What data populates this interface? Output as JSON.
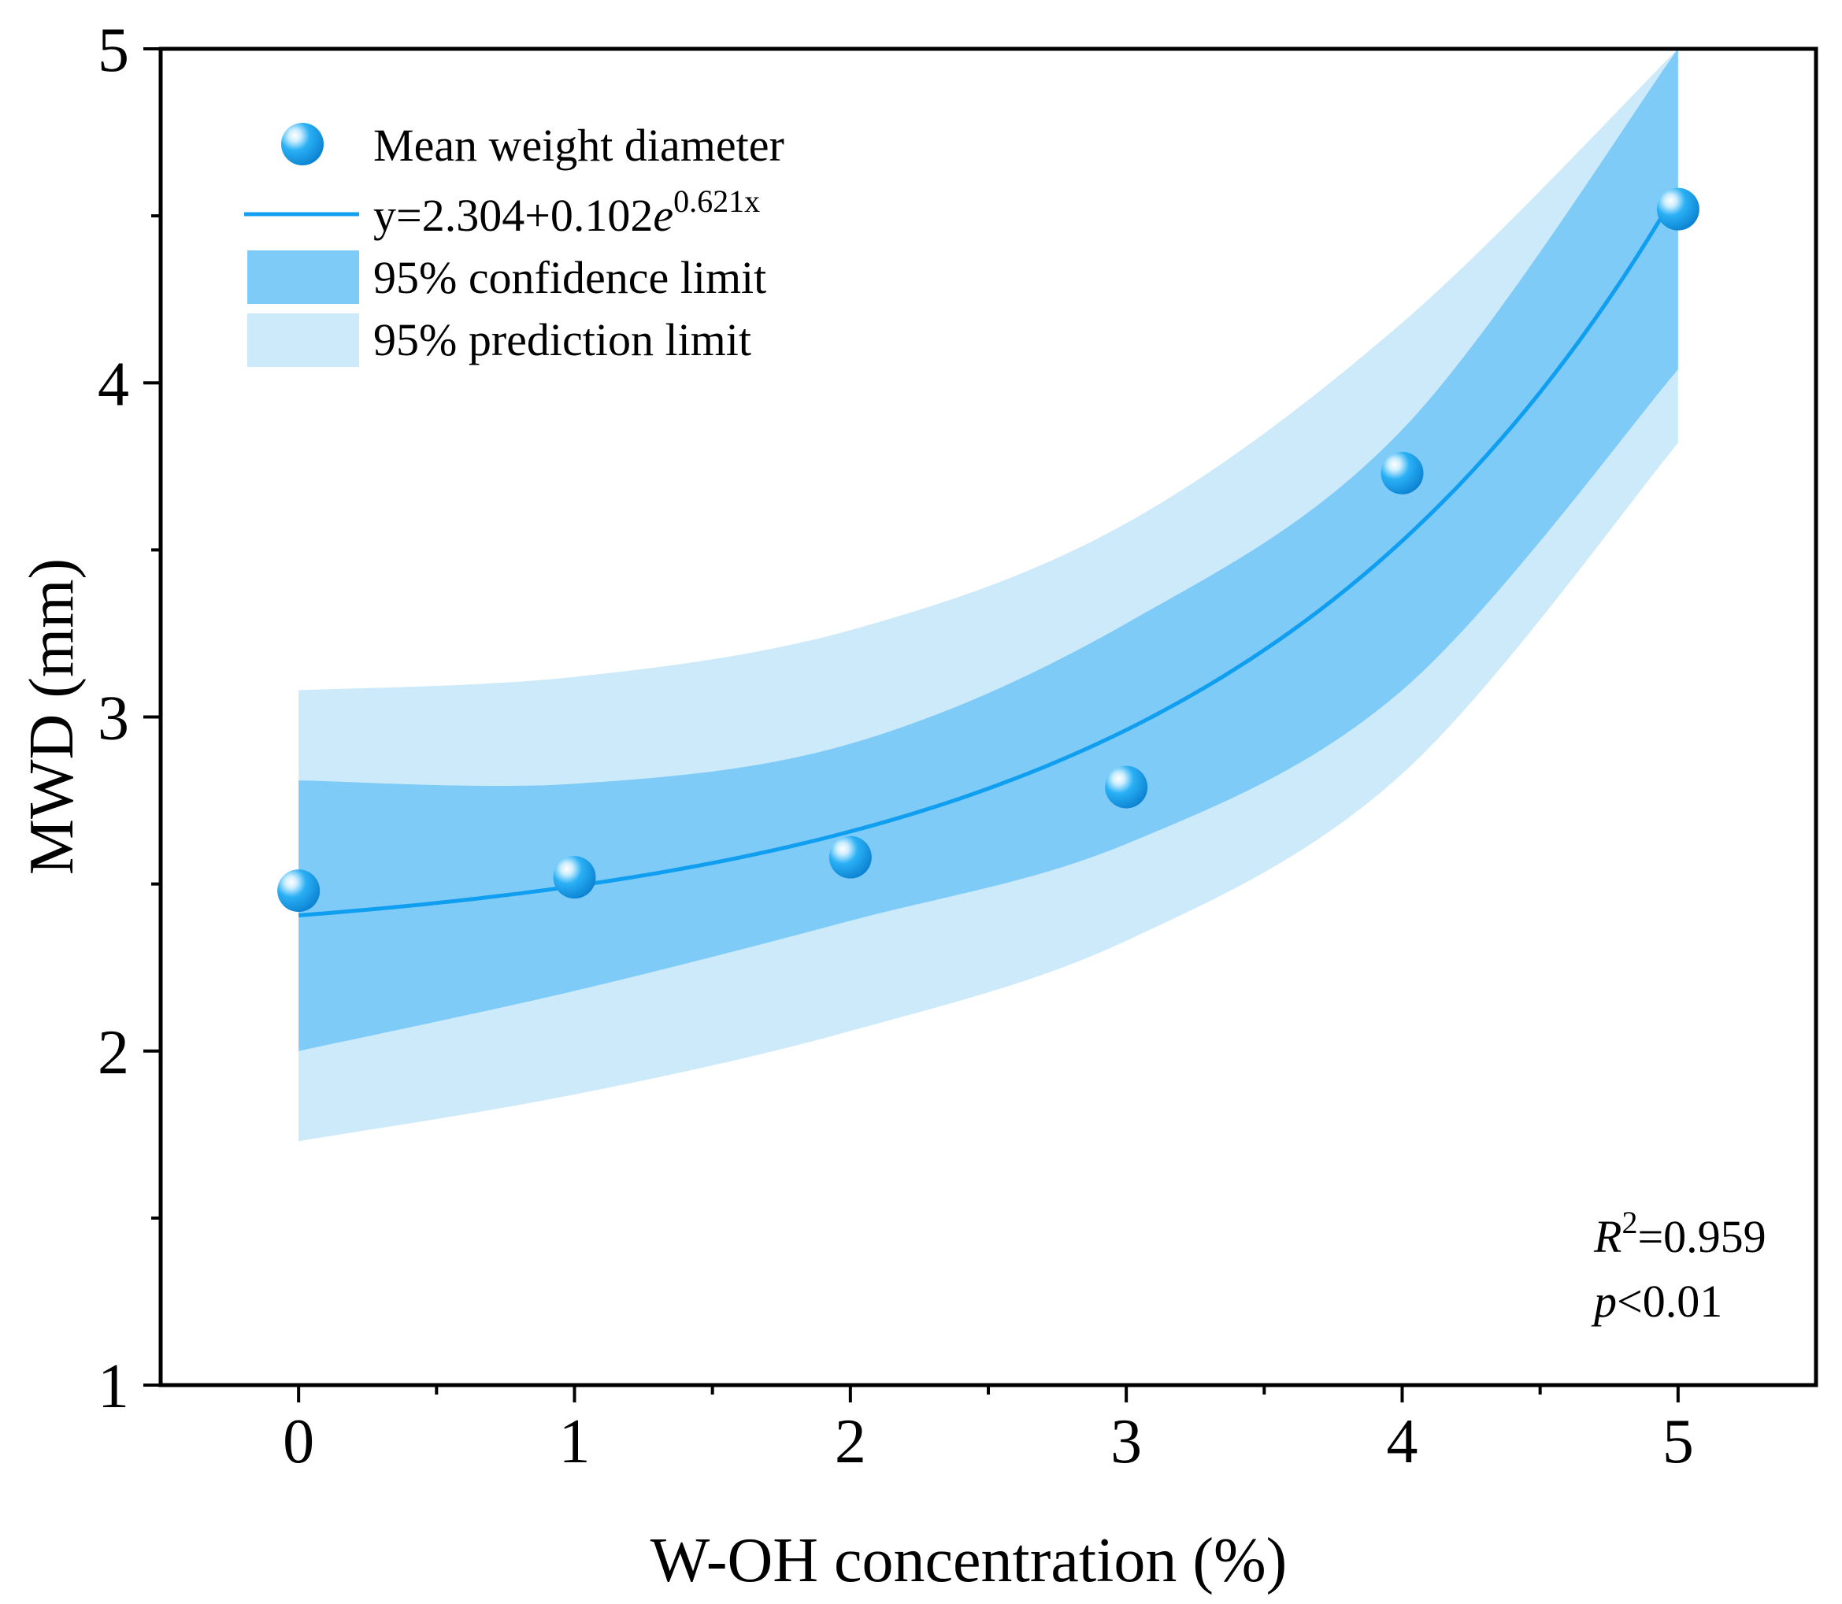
{
  "chart_data": {
    "type": "scatter",
    "title": "",
    "xlabel": "W-OH concentration (%)",
    "ylabel": "MWD (mm)",
    "xlim": [
      -0.5,
      5.5
    ],
    "ylim": [
      1,
      5
    ],
    "xticks": [
      0,
      1,
      2,
      3,
      4,
      5
    ],
    "xtick_labels": [
      "0",
      "1",
      "2",
      "3",
      "4",
      "5"
    ],
    "xminor": [
      0.5,
      1.5,
      2.5,
      3.5,
      4.5
    ],
    "yticks": [
      1,
      2,
      3,
      4,
      5
    ],
    "ytick_labels": [
      "1",
      "2",
      "3",
      "4",
      "5"
    ],
    "yminor": [
      1.5,
      2.5,
      3.5,
      4.5
    ],
    "grid": false,
    "legend_position": "top-left",
    "series": [
      {
        "name": "Mean weight diameter",
        "kind": "points",
        "x": [
          0,
          1,
          2,
          3,
          4,
          5
        ],
        "y": [
          2.48,
          2.52,
          2.58,
          2.79,
          3.73,
          4.52
        ]
      },
      {
        "name": "fit",
        "kind": "line",
        "equation": {
          "a": 2.304,
          "b": 0.102,
          "c": 0.621
        },
        "x_range": [
          0,
          5
        ]
      },
      {
        "name": "95% confidence limit",
        "kind": "band",
        "x": [
          0,
          1,
          2,
          3,
          4,
          5
        ],
        "lower": [
          2.0,
          2.18,
          2.39,
          2.62,
          3.08,
          4.04
        ],
        "upper": [
          2.81,
          2.8,
          2.92,
          3.28,
          3.86,
          5.0
        ]
      },
      {
        "name": "95% prediction limit",
        "kind": "band",
        "x": [
          0,
          1,
          2,
          3,
          4,
          5
        ],
        "lower": [
          1.73,
          1.87,
          2.06,
          2.33,
          2.83,
          3.82
        ],
        "upper": [
          3.08,
          3.12,
          3.26,
          3.58,
          4.18,
          5.0
        ]
      }
    ],
    "legend": {
      "points_label": "Mean weight diameter",
      "line_label_prefix": "y=2.304+0.102",
      "line_label_e": "e",
      "line_label_exp": "0.621x",
      "confidence_label": "95% confidence limit",
      "prediction_label": "95% prediction limit"
    },
    "stats": {
      "r2_symbol": "R",
      "r2_sup": "2",
      "r2_value": "=0.959",
      "p_symbol": "p",
      "p_value": "<0.01"
    },
    "colors": {
      "points": "#1aa3f0",
      "line": "#0f9ef0",
      "confidence": "#7fcbf8",
      "prediction": "#cdeafb",
      "axis": "#000000"
    }
  }
}
